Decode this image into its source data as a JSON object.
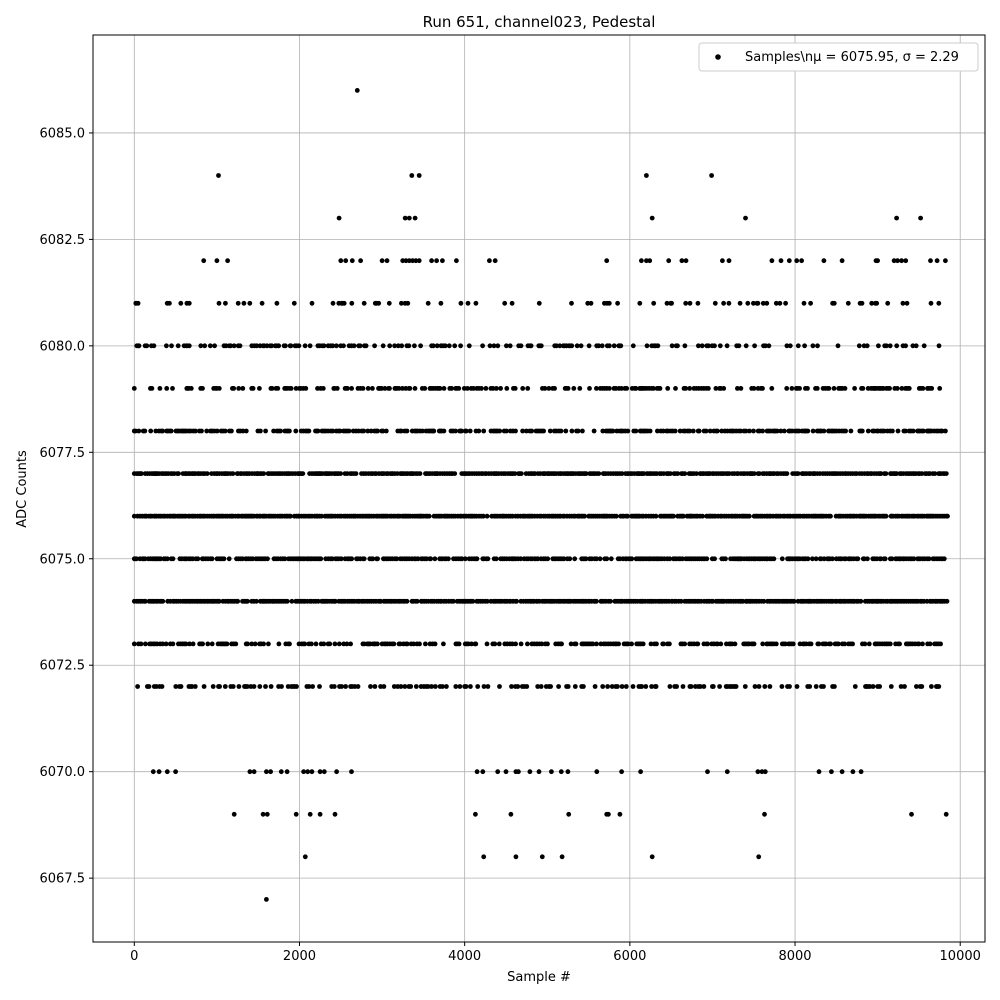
{
  "chart_data": {
    "type": "scatter",
    "title": "Run 651, channel023, Pedestal",
    "xlabel": "Sample #",
    "ylabel": "ADC Counts",
    "xlim": [
      -500,
      10300
    ],
    "ylim": [
      6066.0,
      6087.3
    ],
    "x_ticks": [
      0,
      2000,
      4000,
      6000,
      8000,
      10000
    ],
    "x_tick_labels": [
      "0",
      "2000",
      "4000",
      "6000",
      "8000",
      "10000"
    ],
    "y_ticks": [
      6067.5,
      6070.0,
      6072.5,
      6075.0,
      6077.5,
      6080.0,
      6082.5,
      6085.0
    ],
    "y_tick_labels": [
      "6067.5",
      "6070.0",
      "6072.5",
      "6075.0",
      "6077.5",
      "6080.0",
      "6082.5",
      "6085.0"
    ],
    "grid": true,
    "legend_position": "upper-right",
    "marker_color": "#000000",
    "series": [
      {
        "name": "Samples\\nμ = 6075.95, σ = 2.29",
        "level_coverage": [
          {
            "y": 6073,
            "x_range": [
              0,
              9840
            ]
          },
          {
            "y": 6074,
            "x_range": [
              0,
              9850
            ]
          },
          {
            "y": 6075,
            "x_range": [
              0,
              9840
            ]
          },
          {
            "y": 6076,
            "x_range": [
              0,
              9850
            ]
          },
          {
            "y": 6077,
            "x_range": [
              0,
              9840
            ]
          },
          {
            "y": 6078,
            "x_range": [
              0,
              9840
            ]
          },
          {
            "y": 6079,
            "x_range": [
              0,
              9840
            ]
          },
          {
            "y": 6080,
            "x_range": [
              30,
              9840
            ]
          },
          {
            "y": 6081,
            "x_range": [
              20,
              9800
            ]
          },
          {
            "y": 6072,
            "x_range": [
              40,
              9840
            ]
          }
        ],
        "points": [
          [
            20,
            6081
          ],
          [
            1020,
            6084
          ],
          [
            2700,
            6086
          ],
          [
            2480,
            6083
          ],
          [
            3360,
            6084
          ],
          [
            3450,
            6084
          ],
          [
            3280,
            6083
          ],
          [
            3330,
            6083
          ],
          [
            3400,
            6083
          ],
          [
            6200,
            6084
          ],
          [
            6270,
            6083
          ],
          [
            6990,
            6084
          ],
          [
            7400,
            6083
          ],
          [
            9230,
            6083
          ],
          [
            9520,
            6083
          ],
          [
            840,
            6082
          ],
          [
            1000,
            6082
          ],
          [
            1130,
            6082
          ],
          [
            2500,
            6082
          ],
          [
            2560,
            6082
          ],
          [
            2640,
            6082
          ],
          [
            2740,
            6082
          ],
          [
            3000,
            6082
          ],
          [
            3060,
            6082
          ],
          [
            3250,
            6082
          ],
          [
            3290,
            6082
          ],
          [
            3330,
            6082
          ],
          [
            3370,
            6082
          ],
          [
            3410,
            6082
          ],
          [
            3450,
            6082
          ],
          [
            3600,
            6082
          ],
          [
            3660,
            6082
          ],
          [
            3730,
            6082
          ],
          [
            3900,
            6082
          ],
          [
            4300,
            6082
          ],
          [
            4370,
            6082
          ],
          [
            5720,
            6082
          ],
          [
            6140,
            6082
          ],
          [
            6200,
            6082
          ],
          [
            6240,
            6082
          ],
          [
            6470,
            6082
          ],
          [
            6630,
            6082
          ],
          [
            6680,
            6082
          ],
          [
            7120,
            6082
          ],
          [
            7200,
            6082
          ],
          [
            7720,
            6082
          ],
          [
            7830,
            6082
          ],
          [
            7930,
            6082
          ],
          [
            8020,
            6082
          ],
          [
            8080,
            6082
          ],
          [
            8350,
            6082
          ],
          [
            8570,
            6082
          ],
          [
            8980,
            6082
          ],
          [
            9000,
            6082
          ],
          [
            9200,
            6082
          ],
          [
            9240,
            6082
          ],
          [
            9290,
            6082
          ],
          [
            9340,
            6082
          ],
          [
            9640,
            6082
          ],
          [
            9720,
            6082
          ],
          [
            9820,
            6082
          ],
          [
            230,
            6070
          ],
          [
            300,
            6070
          ],
          [
            400,
            6070
          ],
          [
            500,
            6070
          ],
          [
            1400,
            6070
          ],
          [
            1450,
            6070
          ],
          [
            1600,
            6070
          ],
          [
            1650,
            6070
          ],
          [
            1780,
            6070
          ],
          [
            1850,
            6070
          ],
          [
            2050,
            6070
          ],
          [
            2100,
            6070
          ],
          [
            2150,
            6070
          ],
          [
            2250,
            6070
          ],
          [
            2300,
            6070
          ],
          [
            2450,
            6070
          ],
          [
            2630,
            6070
          ],
          [
            4150,
            6070
          ],
          [
            4220,
            6070
          ],
          [
            4400,
            6070
          ],
          [
            4500,
            6070
          ],
          [
            4620,
            6070
          ],
          [
            4650,
            6070
          ],
          [
            4790,
            6070
          ],
          [
            4900,
            6070
          ],
          [
            5050,
            6070
          ],
          [
            5170,
            6070
          ],
          [
            5250,
            6070
          ],
          [
            5600,
            6070
          ],
          [
            5900,
            6070
          ],
          [
            6130,
            6070
          ],
          [
            6940,
            6070
          ],
          [
            7180,
            6070
          ],
          [
            7550,
            6070
          ],
          [
            7600,
            6070
          ],
          [
            7640,
            6070
          ],
          [
            8290,
            6070
          ],
          [
            8440,
            6070
          ],
          [
            8570,
            6070
          ],
          [
            8700,
            6070
          ],
          [
            8800,
            6070
          ],
          [
            1210,
            6069
          ],
          [
            1560,
            6069
          ],
          [
            1610,
            6069
          ],
          [
            1960,
            6069
          ],
          [
            2130,
            6069
          ],
          [
            2250,
            6069
          ],
          [
            2430,
            6069
          ],
          [
            4130,
            6069
          ],
          [
            4560,
            6069
          ],
          [
            5260,
            6069
          ],
          [
            5720,
            6069
          ],
          [
            5740,
            6069
          ],
          [
            5880,
            6069
          ],
          [
            7630,
            6069
          ],
          [
            9410,
            6069
          ],
          [
            9830,
            6069
          ],
          [
            2070,
            6068
          ],
          [
            4230,
            6068
          ],
          [
            4620,
            6068
          ],
          [
            4940,
            6068
          ],
          [
            5180,
            6068
          ],
          [
            6270,
            6068
          ],
          [
            7560,
            6068
          ],
          [
            1600,
            6067
          ]
        ]
      }
    ]
  }
}
